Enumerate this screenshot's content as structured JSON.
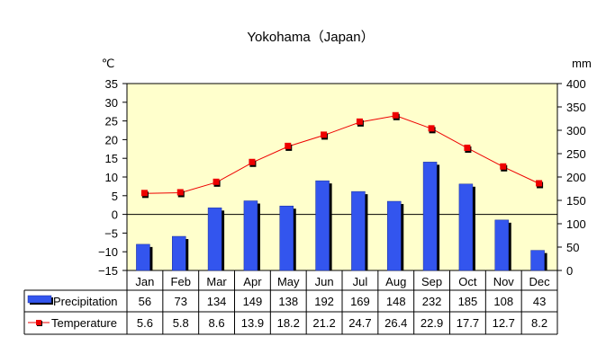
{
  "chart_data": {
    "type": "bar",
    "title": "Yokohama（Japan）",
    "left_axis_unit": "℃",
    "right_axis_unit": "mm",
    "left_axis": {
      "min": -15,
      "max": 35,
      "step": 5
    },
    "right_axis": {
      "min": 0,
      "max": 400,
      "step": 50
    },
    "categories": [
      "Jan",
      "Feb",
      "Mar",
      "Apr",
      "May",
      "Jun",
      "Jul",
      "Aug",
      "Sep",
      "Oct",
      "Nov",
      "Dec"
    ],
    "series": [
      {
        "name": "Precipitation",
        "kind": "bar",
        "axis": "right",
        "color": "#3355ee",
        "values": [
          56,
          73,
          134,
          149,
          138,
          192,
          169,
          148,
          232,
          185,
          108,
          43
        ]
      },
      {
        "name": "Temperature",
        "kind": "line",
        "axis": "left",
        "color": "#ee0000",
        "values": [
          5.6,
          5.8,
          8.6,
          13.9,
          18.2,
          21.2,
          24.7,
          26.4,
          22.9,
          17.7,
          12.7,
          8.2
        ]
      }
    ],
    "plot_background": "#ffffcc"
  }
}
